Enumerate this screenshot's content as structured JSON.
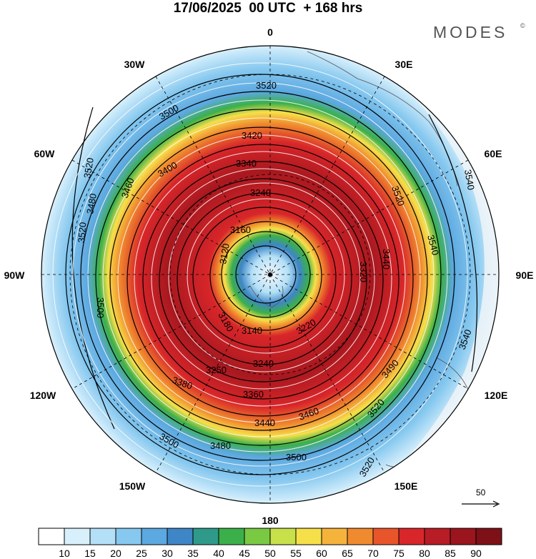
{
  "header": {
    "title": "17/06/2025  00 UTC  + 168 hrs",
    "brand": "MODES",
    "brand_mark": "©"
  },
  "map": {
    "projection": "south-polar-stereographic",
    "longitude_labels": {
      "top": "0",
      "upper_right": "30E",
      "right_upper": "60E",
      "right": "90E",
      "right_lower": "120E",
      "lower_right": "150E",
      "bottom": "180",
      "lower_left": "150W",
      "left_lower": "120W",
      "left": "90W",
      "left_upper": "60W",
      "upper_left": "30W"
    },
    "contour_labels": [
      "3520",
      "3500",
      "3420",
      "3400",
      "3340",
      "3240",
      "3160",
      "3120",
      "3180",
      "3140",
      "3220",
      "3250",
      "3240",
      "3380",
      "3360",
      "3440",
      "3460",
      "3480",
      "3500",
      "3500",
      "3520",
      "3540",
      "3540",
      "3540",
      "3520",
      "3480",
      "3460",
      "3520",
      "3500",
      "3440",
      "3320",
      "3520",
      "3520",
      "3490"
    ],
    "reference_vector_label": "50"
  },
  "colorbar": {
    "tick_labels": [
      "10",
      "15",
      "20",
      "25",
      "30",
      "35",
      "40",
      "45",
      "50",
      "55",
      "60",
      "65",
      "70",
      "75",
      "80",
      "85",
      "90"
    ],
    "colors": [
      "#ffffff",
      "#d8f0fc",
      "#b3e0f7",
      "#86c8ef",
      "#5ca8e0",
      "#3e86c6",
      "#2f9a8a",
      "#3bb04a",
      "#7ac943",
      "#c8e04a",
      "#f6e04a",
      "#f6b33c",
      "#f08a2e",
      "#e8552a",
      "#d8262a",
      "#b81c24",
      "#9a151e",
      "#7e1018"
    ]
  }
}
